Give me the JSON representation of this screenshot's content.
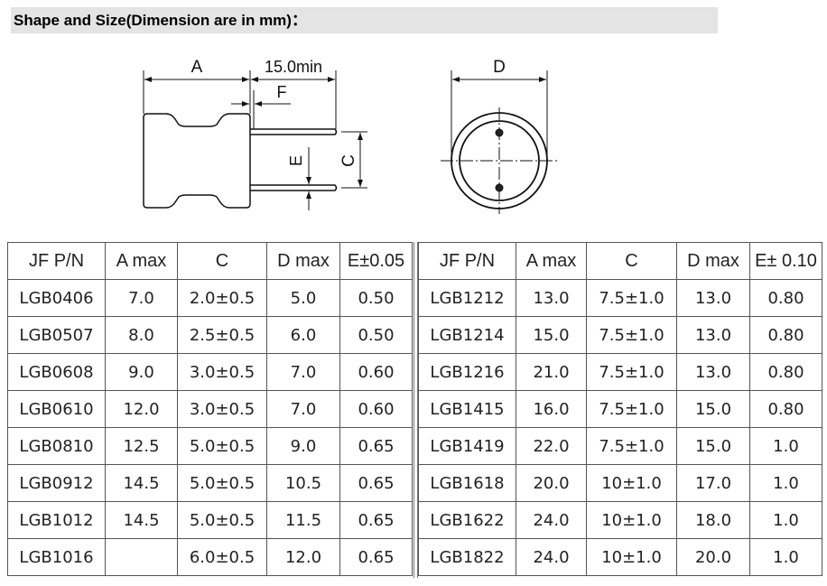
{
  "title": "Shape and Size(Dimension are in mm)：",
  "drawing": {
    "label_a": "A",
    "label_lead": "15.0min",
    "label_f": "F",
    "label_e": "E",
    "label_c": "C",
    "label_d": "D"
  },
  "table_left": {
    "headers": [
      "JF  P/N",
      "A max",
      "C",
      "D max",
      "E±0.05"
    ],
    "rows": [
      [
        "LGB0406",
        "7.0",
        "2.0±0.5",
        "5.0",
        "0.50"
      ],
      [
        "LGB0507",
        "8.0",
        "2.5±0.5",
        "6.0",
        "0.50"
      ],
      [
        "LGB0608",
        "9.0",
        "3.0±0.5",
        "7.0",
        "0.60"
      ],
      [
        "LGB0610",
        "12.0",
        "3.0±0.5",
        "7.0",
        "0.60"
      ],
      [
        "LGB0810",
        "12.5",
        "5.0±0.5",
        "9.0",
        "0.65"
      ],
      [
        "LGB0912",
        "14.5",
        "5.0±0.5",
        "10.5",
        "0.65"
      ],
      [
        "LGB1012",
        "14.5",
        "5.0±0.5",
        "11.5",
        "0.65"
      ],
      [
        "LGB1016",
        "",
        "6.0±0.5",
        "12.0",
        "0.65"
      ]
    ]
  },
  "table_right": {
    "headers": [
      "JF  P/N",
      "A max",
      "C",
      "D max",
      "E± 0.10"
    ],
    "rows": [
      [
        "LGB1212",
        "13.0",
        "7.5±1.0",
        "13.0",
        "0.80"
      ],
      [
        "LGB1214",
        "15.0",
        "7.5±1.0",
        "13.0",
        "0.80"
      ],
      [
        "LGB1216",
        "21.0",
        "7.5±1.0",
        "13.0",
        "0.80"
      ],
      [
        "LGB1415",
        "16.0",
        "7.5±1.0",
        "15.0",
        "0.80"
      ],
      [
        "LGB1419",
        "22.0",
        "7.5±1.0",
        "15.0",
        "1.0"
      ],
      [
        "LGB1618",
        "20.0",
        "10±1.0",
        "17.0",
        "1.0"
      ],
      [
        "LGB1622",
        "24.0",
        "10±1.0",
        "18.0",
        "1.0"
      ],
      [
        "LGB1822",
        "24.0",
        "10±1.0",
        "20.0",
        "1.0"
      ]
    ]
  }
}
